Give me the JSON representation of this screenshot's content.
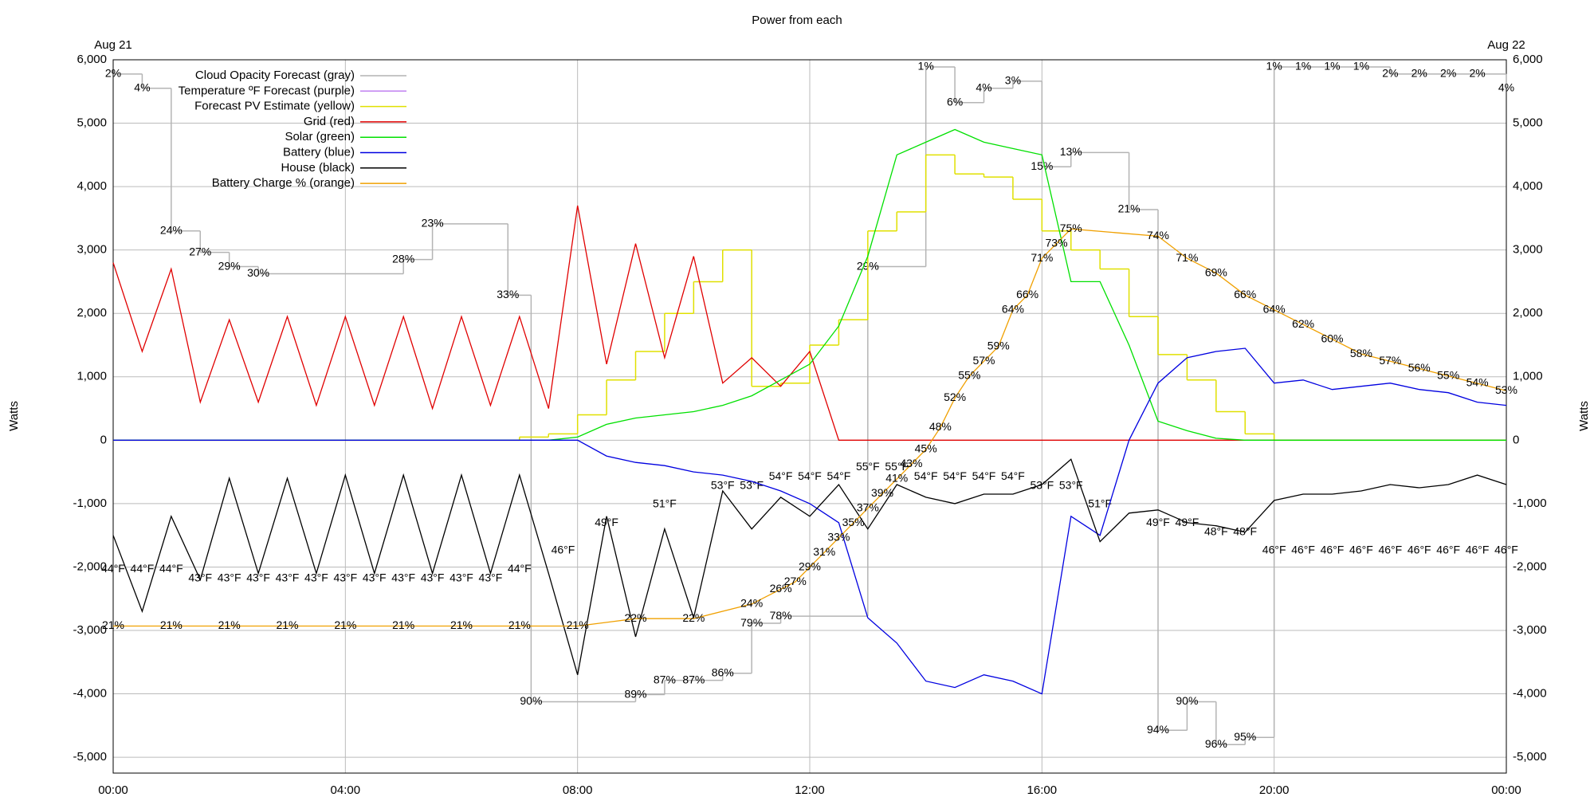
{
  "chart_data": {
    "type": "line",
    "title": "Power from each",
    "ylabel": "Watts",
    "y2label": "Watts",
    "xlim": [
      0,
      24
    ],
    "xticks": [
      {
        "value": 0,
        "label": "00:00"
      },
      {
        "value": 4,
        "label": "04:00"
      },
      {
        "value": 8,
        "label": "08:00"
      },
      {
        "value": 12,
        "label": "12:00"
      },
      {
        "value": 16,
        "label": "16:00"
      },
      {
        "value": 20,
        "label": "20:00"
      },
      {
        "value": 24,
        "label": "00:00"
      }
    ],
    "x2ticks": [
      {
        "value": 0,
        "label": "Aug 21"
      },
      {
        "value": 24,
        "label": "Aug 22"
      }
    ],
    "ylim": [
      -5250,
      6000
    ],
    "yticks": [
      {
        "value": 6000,
        "label": "6,000"
      },
      {
        "value": 5000,
        "label": "5,000"
      },
      {
        "value": 4000,
        "label": "4,000"
      },
      {
        "value": 3000,
        "label": "3,000"
      },
      {
        "value": 2000,
        "label": "2,000"
      },
      {
        "value": 1000,
        "label": "1,000"
      },
      0,
      {
        "value": -1000,
        "label": "-1,000"
      },
      {
        "value": -2000,
        "label": "-2,000"
      },
      {
        "value": -3000,
        "label": "-3,000"
      },
      {
        "value": -4000,
        "label": "-4,000"
      },
      {
        "value": -5000,
        "label": "-5,000"
      }
    ],
    "grid": true,
    "legend": "upper left",
    "x": [
      0,
      0.5,
      1,
      1.5,
      2,
      2.5,
      3,
      3.5,
      4,
      4.5,
      5,
      5.5,
      6,
      6.5,
      7,
      7.5,
      8,
      8.5,
      9,
      9.5,
      10,
      10.5,
      11,
      11.5,
      12,
      12.5,
      13,
      13.5,
      14,
      14.5,
      15,
      15.5,
      16,
      16.5,
      17,
      17.5,
      18,
      18.5,
      19,
      19.5,
      20,
      20.5,
      21,
      21.5,
      22,
      22.5,
      23,
      23.5,
      24
    ],
    "series": [
      {
        "name": "Cloud Opacity Forecast (gray)",
        "color": "#b4b4b4",
        "label_color": "#b0b0b0",
        "step": true,
        "ylim": [
          100,
          0
        ],
        "x": [
          0,
          0.5,
          1,
          1.5,
          2,
          2.5,
          5,
          5.5,
          6.8,
          7.2,
          9,
          9.5,
          10,
          10.5,
          11,
          11.5,
          13,
          14,
          14.5,
          15,
          15.5,
          16,
          16.5,
          17.5,
          18,
          18.5,
          19,
          19.5,
          20,
          20.5,
          21,
          21.5,
          22,
          22.5,
          23,
          23.5,
          24
        ],
        "values": [
          2,
          4,
          24,
          27,
          29,
          30,
          28,
          23,
          33,
          90,
          89,
          87,
          87,
          86,
          79,
          78,
          29,
          1,
          6,
          4,
          3,
          15,
          13,
          21,
          94,
          90,
          96,
          95,
          1,
          1,
          1,
          1,
          2,
          2,
          2,
          2,
          4
        ],
        "value_labels": [
          "2%",
          "4%",
          "24%",
          "27%",
          "29%",
          "30%",
          "28%",
          "23%",
          "33%",
          "90%",
          "89%",
          "87%",
          "87%",
          "86%",
          "79%",
          "78%",
          "29%",
          "1%",
          "6%",
          "4%",
          "3%",
          "15%",
          "13%",
          "21%",
          "94%",
          "90%",
          "96%",
          "95%",
          "1%",
          "1%",
          "1%",
          "1%",
          "2%",
          "2%",
          "2%",
          "2%",
          "4%"
        ]
      },
      {
        "name": "Temperature ºF Forecast (purple)",
        "color": "#c080f0",
        "label_color": "#c080f0",
        "show_line": false,
        "ylim": [
          22,
          99
        ],
        "x": [
          0,
          0.5,
          1,
          1.5,
          2,
          2.5,
          3,
          3.5,
          4,
          4.5,
          5,
          5.5,
          6,
          6.5,
          7,
          7.75,
          8.5,
          9.5,
          10.5,
          11,
          11.5,
          12,
          12.5,
          13,
          13.5,
          14,
          14.5,
          15,
          15.5,
          16,
          16.5,
          17,
          18,
          18.5,
          19,
          19.5,
          20,
          20.5,
          21,
          21.5,
          22,
          22.5,
          23,
          23.5,
          24
        ],
        "values": [
          44,
          44,
          44,
          43,
          43,
          43,
          43,
          43,
          43,
          43,
          43,
          43,
          43,
          43,
          44,
          46,
          49,
          51,
          53,
          53,
          54,
          54,
          54,
          55,
          55,
          54,
          54,
          54,
          54,
          53,
          53,
          51,
          49,
          49,
          48,
          48,
          46,
          46,
          46,
          46,
          46,
          46,
          46,
          46,
          46
        ],
        "value_labels": [
          "44°F",
          "44°F",
          "44°F",
          "43°F",
          "43°F",
          "43°F",
          "43°F",
          "43°F",
          "43°F",
          "43°F",
          "43°F",
          "43°F",
          "43°F",
          "43°F",
          "44°F",
          "46°F",
          "49°F",
          "51°F",
          "53°F",
          "53°F",
          "54°F",
          "54°F",
          "54°F",
          "55°F",
          "55°F",
          "54°F",
          "54°F",
          "54°F",
          "54°F",
          "53°F",
          "53°F",
          "51°F",
          "49°F",
          "49°F",
          "48°F",
          "48°F",
          "46°F",
          "46°F",
          "46°F",
          "46°F",
          "46°F",
          "46°F",
          "46°F",
          "46°F",
          "46°F"
        ]
      },
      {
        "name": "Forecast PV Estimate (yellow)",
        "color": "#e0e000",
        "step": true,
        "values": [
          0,
          0,
          0,
          0,
          0,
          0,
          0,
          0,
          0,
          0,
          0,
          0,
          0,
          0,
          50,
          100,
          400,
          950,
          1400,
          2000,
          2500,
          3000,
          850,
          900,
          1500,
          1900,
          3300,
          3600,
          4500,
          4200,
          4150,
          3800,
          3300,
          3000,
          2700,
          1950,
          1350,
          950,
          450,
          100,
          0,
          0,
          0,
          0,
          0,
          0,
          0,
          0,
          0
        ]
      },
      {
        "name": "Grid (red)",
        "color": "#e00000",
        "values": [
          2800,
          1400,
          2700,
          600,
          1900,
          600,
          1950,
          550,
          1950,
          550,
          1950,
          500,
          1950,
          550,
          1950,
          500,
          3700,
          1200,
          3100,
          1300,
          2900,
          900,
          1300,
          850,
          1400,
          0,
          0,
          0,
          0,
          0,
          0,
          0,
          0,
          0,
          0,
          0,
          0,
          0,
          0,
          0,
          0,
          0,
          0,
          0,
          0,
          0,
          0,
          0,
          0
        ]
      },
      {
        "name": "Solar (green)",
        "color": "#00e000",
        "values": [
          0,
          0,
          0,
          0,
          0,
          0,
          0,
          0,
          0,
          0,
          0,
          0,
          0,
          0,
          0,
          0,
          50,
          250,
          350,
          400,
          450,
          550,
          700,
          950,
          1200,
          1800,
          2900,
          4500,
          4700,
          4900,
          4700,
          4600,
          4500,
          2500,
          2500,
          1500,
          300,
          150,
          30,
          0,
          0,
          0,
          0,
          0,
          0,
          0,
          0,
          0,
          0
        ]
      },
      {
        "name": "Battery (blue)",
        "color": "#0000e0",
        "values": [
          0,
          0,
          0,
          0,
          0,
          0,
          0,
          0,
          0,
          0,
          0,
          0,
          0,
          0,
          0,
          0,
          0,
          -250,
          -350,
          -400,
          -500,
          -550,
          -650,
          -800,
          -1000,
          -1300,
          -2800,
          -3200,
          -3800,
          -3900,
          -3700,
          -3800,
          -4000,
          -1200,
          -1500,
          0,
          900,
          1300,
          1400,
          1450,
          900,
          950,
          800,
          850,
          900,
          800,
          750,
          600,
          550
        ]
      },
      {
        "name": "House (black)",
        "color": "#000000",
        "values": [
          -1500,
          -2700,
          -1200,
          -2200,
          -600,
          -2100,
          -600,
          -2100,
          -550,
          -2100,
          -550,
          -2100,
          -550,
          -2100,
          -550,
          -2100,
          -3700,
          -1200,
          -3100,
          -1400,
          -2800,
          -800,
          -1400,
          -900,
          -1200,
          -700,
          -1400,
          -700,
          -900,
          -1000,
          -850,
          -850,
          -700,
          -300,
          -1600,
          -1150,
          -1100,
          -1300,
          -1350,
          -1450,
          -950,
          -850,
          -850,
          -800,
          -700,
          -750,
          -700,
          -550,
          -700
        ]
      },
      {
        "name": "Battery Charge % (orange)",
        "color": "#f0a000",
        "label_color": "#8b4513",
        "ylim": [
          1,
          98
        ],
        "x": [
          0,
          1,
          2,
          3,
          4,
          5,
          6,
          7,
          8,
          9,
          10,
          11,
          11.5,
          11.75,
          12,
          12.25,
          12.5,
          12.75,
          13,
          13.25,
          13.5,
          13.75,
          14,
          14.25,
          14.5,
          14.75,
          15,
          15.25,
          15.5,
          15.75,
          16,
          16.25,
          16.5,
          18,
          18.5,
          19,
          19.5,
          20,
          20.5,
          21,
          21.5,
          22,
          22.5,
          23,
          23.5,
          24
        ],
        "values": [
          21,
          21,
          21,
          21,
          21,
          21,
          21,
          21,
          21,
          22,
          22,
          24,
          26,
          27,
          29,
          31,
          33,
          35,
          37,
          39,
          41,
          43,
          45,
          48,
          52,
          55,
          57,
          59,
          64,
          66,
          71,
          73,
          75,
          74,
          71,
          69,
          66,
          64,
          62,
          60,
          58,
          57,
          56,
          55,
          54,
          53
        ],
        "value_labels": [
          "21%",
          "21%",
          "21%",
          "21%",
          "21%",
          "21%",
          "21%",
          "21%",
          "21%",
          "22%",
          "22%",
          "24%",
          "26%",
          "27%",
          "29%",
          "31%",
          "33%",
          "35%",
          "37%",
          "39%",
          "41%",
          "43%",
          "45%",
          "48%",
          "52%",
          "55%",
          "57%",
          "59%",
          "64%",
          "66%",
          "71%",
          "73%",
          "75%",
          "74%",
          "71%",
          "69%",
          "66%",
          "64%",
          "62%",
          "60%",
          "58%",
          "57%",
          "56%",
          "55%",
          "54%",
          "53%"
        ]
      }
    ]
  }
}
